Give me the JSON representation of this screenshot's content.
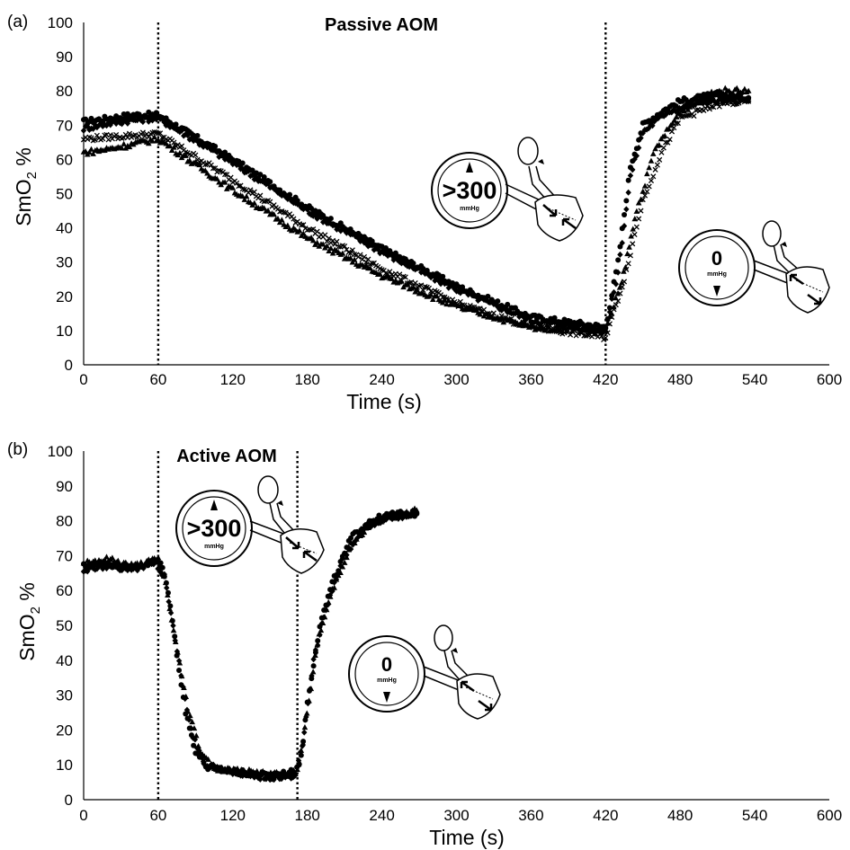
{
  "chart_data": [
    {
      "panel_label": "(a)",
      "title": "Passive AOM",
      "type": "scatter",
      "xlabel": "Time (s)",
      "ylabel": "SmO2 %",
      "xlim": [
        0,
        600
      ],
      "ylim": [
        0,
        100
      ],
      "xticks": [
        0,
        60,
        120,
        180,
        240,
        300,
        360,
        420,
        480,
        540,
        600
      ],
      "yticks": [
        0,
        10,
        20,
        30,
        40,
        50,
        60,
        70,
        80,
        90,
        100
      ],
      "vlines": [
        60,
        420
      ],
      "gauges": [
        {
          "value": ">300",
          "unit": "mmHg"
        },
        {
          "value": "0",
          "unit": "mmHg"
        }
      ],
      "series": [
        {
          "marker": "circle",
          "points": [
            [
              0,
              71
            ],
            [
              20,
              72
            ],
            [
              40,
              73
            ],
            [
              60,
              73
            ],
            [
              120,
              60
            ],
            [
              180,
              46
            ],
            [
              240,
              34
            ],
            [
              300,
              23
            ],
            [
              360,
              14
            ],
            [
              420,
              11
            ],
            [
              430,
              30
            ],
            [
              440,
              58
            ],
            [
              450,
              70
            ],
            [
              465,
              74
            ],
            [
              480,
              77
            ],
            [
              510,
              79
            ],
            [
              535,
              78
            ]
          ]
        },
        {
          "marker": "diamond",
          "points": [
            [
              0,
              69
            ],
            [
              20,
              70.5
            ],
            [
              40,
              71.5
            ],
            [
              60,
              72
            ],
            [
              120,
              59
            ],
            [
              180,
              45
            ],
            [
              240,
              33
            ],
            [
              300,
              22
            ],
            [
              360,
              13
            ],
            [
              420,
              10
            ],
            [
              430,
              27
            ],
            [
              440,
              55
            ],
            [
              450,
              68
            ],
            [
              470,
              74
            ],
            [
              500,
              77
            ],
            [
              535,
              77
            ]
          ]
        },
        {
          "marker": "x",
          "points": [
            [
              0,
              66
            ],
            [
              20,
              66.5
            ],
            [
              40,
              67
            ],
            [
              60,
              67.5
            ],
            [
              120,
              54
            ],
            [
              180,
              40
            ],
            [
              240,
              28
            ],
            [
              300,
              18
            ],
            [
              360,
              11
            ],
            [
              420,
              8
            ],
            [
              435,
              25
            ],
            [
              450,
              48
            ],
            [
              465,
              62
            ],
            [
              480,
              72
            ],
            [
              510,
              76
            ],
            [
              535,
              77
            ]
          ]
        },
        {
          "marker": "triangle",
          "points": [
            [
              0,
              62
            ],
            [
              20,
              63
            ],
            [
              40,
              64.5
            ],
            [
              60,
              66
            ],
            [
              120,
              51
            ],
            [
              180,
              37
            ],
            [
              240,
              26
            ],
            [
              300,
              17
            ],
            [
              360,
              11
            ],
            [
              420,
              10
            ],
            [
              433,
              24
            ],
            [
              445,
              45
            ],
            [
              460,
              63
            ],
            [
              480,
              74
            ],
            [
              510,
              80
            ],
            [
              535,
              80
            ]
          ]
        }
      ]
    },
    {
      "panel_label": "(b)",
      "title": "Active AOM",
      "type": "scatter",
      "xlabel": "Time (s)",
      "ylabel": "SmO2 %",
      "xlim": [
        0,
        600
      ],
      "ylim": [
        0,
        100
      ],
      "xticks": [
        0,
        60,
        120,
        180,
        240,
        300,
        360,
        420,
        480,
        540,
        600
      ],
      "yticks": [
        0,
        10,
        20,
        30,
        40,
        50,
        60,
        70,
        80,
        90,
        100
      ],
      "vlines": [
        60,
        172
      ],
      "gauges": [
        {
          "value": ">300",
          "unit": "mmHg"
        },
        {
          "value": "0",
          "unit": "mmHg"
        }
      ],
      "series": [
        {
          "marker": "circle",
          "points": [
            [
              0,
              67
            ],
            [
              20,
              67.5
            ],
            [
              40,
              66.5
            ],
            [
              55,
              68
            ],
            [
              62,
              68
            ],
            [
              68,
              60
            ],
            [
              75,
              42
            ],
            [
              82,
              25
            ],
            [
              90,
              14
            ],
            [
              100,
              9
            ],
            [
              120,
              8
            ],
            [
              150,
              7
            ],
            [
              170,
              8
            ],
            [
              175,
              12
            ],
            [
              180,
              28
            ],
            [
              190,
              50
            ],
            [
              200,
              62
            ],
            [
              215,
              75
            ],
            [
              230,
              80
            ],
            [
              250,
              82
            ],
            [
              268,
              82
            ]
          ]
        },
        {
          "marker": "diamond",
          "points": [
            [
              0,
              66
            ],
            [
              20,
              67
            ],
            [
              40,
              66
            ],
            [
              58,
              68
            ],
            [
              65,
              64
            ],
            [
              72,
              50
            ],
            [
              80,
              32
            ],
            [
              88,
              18
            ],
            [
              98,
              10
            ],
            [
              120,
              8
            ],
            [
              150,
              6
            ],
            [
              170,
              7
            ],
            [
              176,
              15
            ],
            [
              185,
              40
            ],
            [
              195,
              55
            ],
            [
              210,
              70
            ],
            [
              225,
              78
            ],
            [
              245,
              81
            ],
            [
              268,
              82
            ]
          ]
        },
        {
          "marker": "triangle",
          "points": [
            [
              0,
              68
            ],
            [
              20,
              69
            ],
            [
              40,
              67
            ],
            [
              60,
              69
            ],
            [
              66,
              62
            ],
            [
              74,
              45
            ],
            [
              84,
              26
            ],
            [
              94,
              14
            ],
            [
              105,
              9
            ],
            [
              130,
              8
            ],
            [
              160,
              7
            ],
            [
              172,
              8
            ],
            [
              178,
              20
            ],
            [
              188,
              45
            ],
            [
              200,
              60
            ],
            [
              215,
              73
            ],
            [
              235,
              80
            ],
            [
              255,
              82
            ],
            [
              268,
              83
            ]
          ]
        }
      ]
    }
  ]
}
